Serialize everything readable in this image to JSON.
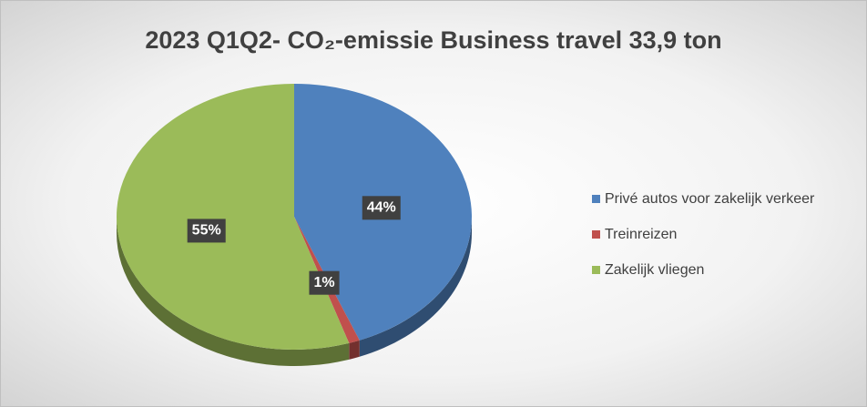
{
  "chart_data": {
    "type": "pie",
    "title": "2023 Q1Q2- CO₂-emissie Business travel 33,9 ton",
    "categories": [
      "Privé autos voor zakelijk verkeer",
      "Treinreizen",
      "Zakelijk vliegen"
    ],
    "values": [
      44,
      1,
      55
    ],
    "value_labels": [
      "44%",
      "1%",
      "55%"
    ],
    "colors": [
      "#4f81bd",
      "#c0504d",
      "#9bbb59"
    ],
    "legend": "right"
  }
}
